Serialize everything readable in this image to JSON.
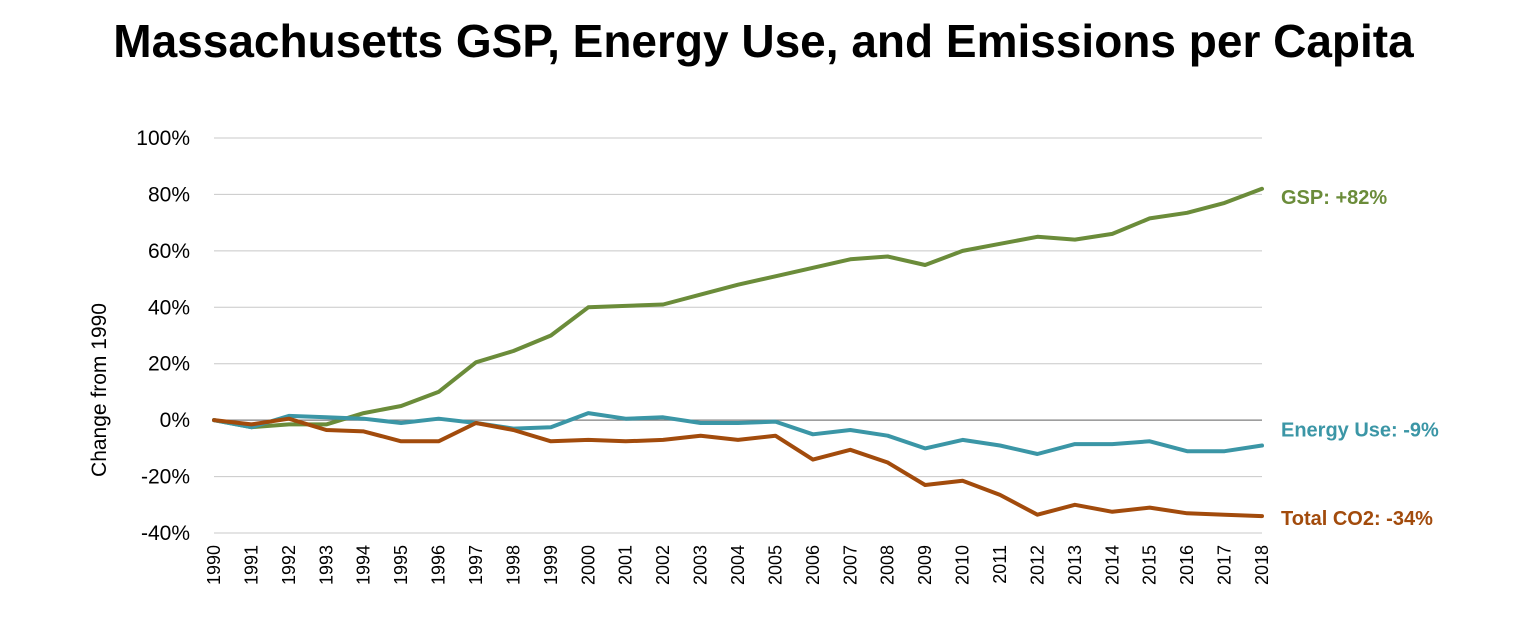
{
  "chart_data": {
    "type": "line",
    "title": "Massachusetts GSP, Energy Use, and Emissions per Capita",
    "ylabel": "Change from 1990",
    "xlabel": "",
    "ylim": [
      -40,
      100
    ],
    "ytick_step": 20,
    "ytick_labels": [
      "100%",
      "80%",
      "60%",
      "40%",
      "20%",
      "0%",
      "-20%",
      "-40%"
    ],
    "x": [
      1990,
      1991,
      1992,
      1993,
      1994,
      1995,
      1996,
      1997,
      1998,
      1999,
      2000,
      2001,
      2002,
      2003,
      2004,
      2005,
      2006,
      2007,
      2008,
      2009,
      2010,
      2011,
      2012,
      2013,
      2014,
      2015,
      2016,
      2017,
      2018
    ],
    "x_labels": [
      "1990",
      "1991",
      "1992",
      "1993",
      "1994",
      "1995",
      "1996",
      "1997",
      "1998",
      "1999",
      "2000",
      "2001",
      "2002",
      "2003",
      "2004",
      "2005",
      "2006",
      "2007",
      "2008",
      "2009",
      "2010",
      "2011",
      "2012",
      "2013",
      "2014",
      "2015",
      "2016",
      "2017",
      "2018"
    ],
    "grid": true,
    "series": [
      {
        "name": "GSP",
        "end_label": "GSP: +82%",
        "color": "#6b8c3a",
        "values": [
          0,
          -2.5,
          -1.5,
          -1.5,
          2.5,
          5,
          10,
          20.5,
          24.5,
          30,
          40,
          40.5,
          41,
          44.5,
          48,
          51,
          54,
          57,
          58,
          55,
          60,
          62.5,
          65,
          64,
          66,
          71.5,
          73.5,
          77,
          82
        ]
      },
      {
        "name": "Energy Use",
        "end_label": "Energy Use: -9%",
        "color": "#3b96a6",
        "values": [
          0,
          -2.5,
          1.5,
          1,
          0.5,
          -1,
          0.5,
          -1,
          -3,
          -2.5,
          2.5,
          0.5,
          1,
          -1,
          -1,
          -0.5,
          -5,
          -3.5,
          -5.5,
          -10,
          -7,
          -9,
          -12,
          -8.5,
          -8.5,
          -7.5,
          -11,
          -11,
          -9
        ]
      },
      {
        "name": "Total CO2",
        "end_label": "Total CO2: -34%",
        "color": "#a24b0c",
        "values": [
          0,
          -1.5,
          0.5,
          -3.5,
          -4,
          -7.5,
          -7.5,
          -1,
          -3.5,
          -7.5,
          -7,
          -7.5,
          -7,
          -5.5,
          -7,
          -5.5,
          -14,
          -10.5,
          -15,
          -23,
          -21.5,
          -26.5,
          -33.5,
          -30,
          -32.5,
          -31,
          -33,
          -33.5,
          -34
        ]
      }
    ]
  }
}
